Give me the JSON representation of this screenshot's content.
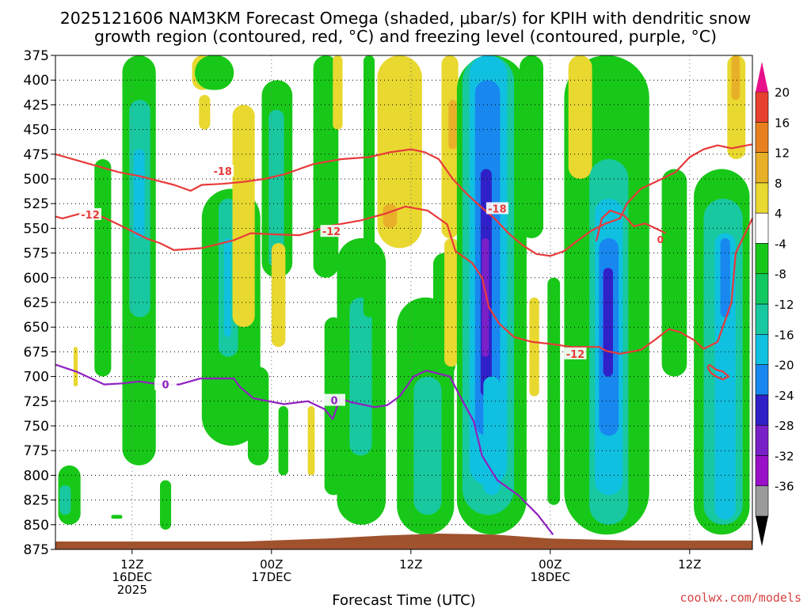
{
  "chart_data": {
    "type": "heatmap",
    "title_line1": "2025121606 NAM3KM Forecast Omega (shaded, μbar/s) for KPIH with dendritic snow",
    "title_line2": "growth region (contoured, red, °C) and freezing level (contoured, purple, °C)",
    "xlabel": "Forecast Time (UTC)",
    "credit": "coolwx.com/models",
    "x_range_hours": [
      6.5,
      56.5
    ],
    "y_range_mb": [
      375,
      875
    ],
    "y_ticks": [
      375,
      400,
      425,
      450,
      475,
      500,
      525,
      550,
      575,
      600,
      625,
      650,
      675,
      700,
      725,
      750,
      775,
      800,
      825,
      850,
      875
    ],
    "x_ticks": [
      {
        "hour": 12,
        "l1": "12Z",
        "l2": "16DEC",
        "l3": "2025"
      },
      {
        "hour": 22,
        "l1": "00Z",
        "l2": "17DEC",
        "l3": ""
      },
      {
        "hour": 32,
        "l1": "12Z",
        "l2": "",
        "l3": ""
      },
      {
        "hour": 42,
        "l1": "00Z",
        "l2": "18DEC",
        "l3": ""
      },
      {
        "hour": 52,
        "l1": "12Z",
        "l2": "",
        "l3": ""
      }
    ],
    "colorbar": {
      "labels": [
        "20",
        "16",
        "12",
        "8",
        "4",
        "-4",
        "-8",
        "-12",
        "-16",
        "-20",
        "-24",
        "-28",
        "-32",
        "-36"
      ],
      "colors": [
        "#e8e8e8",
        "#9b9b9b",
        "#9a10c8",
        "#7a20c8",
        "#3020c8",
        "#1888f0",
        "#10c0e0",
        "#18c8a0",
        "#10c860",
        "#18c818",
        "#ffffff",
        "#e8d830",
        "#e8b028",
        "#e88020",
        "#e84030",
        "#e8108a"
      ]
    },
    "omega_cells": [
      {
        "t": [
          9.3,
          10.5
        ],
        "p": [
          480,
          700
        ],
        "v": -6
      },
      {
        "t": [
          11.3,
          13.7
        ],
        "p": [
          375,
          790
        ],
        "v": -7
      },
      {
        "t": [
          11.8,
          13.3
        ],
        "p": [
          420,
          640
        ],
        "v": -10
      },
      {
        "t": [
          12.1,
          12.9
        ],
        "p": [
          470,
          560
        ],
        "v": -13
      },
      {
        "t": [
          16.3,
          17.8
        ],
        "p": [
          375,
          410
        ],
        "v": 5
      },
      {
        "t": [
          16.8,
          17.6
        ],
        "p": [
          415,
          450
        ],
        "v": 6
      },
      {
        "t": [
          17.0,
          21.2
        ],
        "p": [
          510,
          770
        ],
        "v": -6
      },
      {
        "t": [
          18.2,
          19.6
        ],
        "p": [
          520,
          680
        ],
        "v": -10
      },
      {
        "t": [
          18.6,
          19.1
        ],
        "p": [
          560,
          660
        ],
        "v": -14
      },
      {
        "t": [
          19.2,
          20.8
        ],
        "p": [
          425,
          650
        ],
        "v": 5
      },
      {
        "t": [
          19.4,
          20.2
        ],
        "p": [
          560,
          600
        ],
        "v": 7
      },
      {
        "t": [
          20.3,
          21.8
        ],
        "p": [
          690,
          790
        ],
        "v": -6
      },
      {
        "t": [
          21.3,
          23.5
        ],
        "p": [
          400,
          600
        ],
        "v": -7
      },
      {
        "t": [
          21.8,
          22.9
        ],
        "p": [
          430,
          590
        ],
        "v": -11
      },
      {
        "t": [
          22.0,
          23.0
        ],
        "p": [
          565,
          670
        ],
        "v": 5
      },
      {
        "t": [
          22.5,
          23.2
        ],
        "p": [
          730,
          800
        ],
        "v": -6
      },
      {
        "t": [
          24.6,
          25.1
        ],
        "p": [
          730,
          800
        ],
        "v": 5
      },
      {
        "t": [
          25.0,
          26.8
        ],
        "p": [
          375,
          600
        ],
        "v": -6
      },
      {
        "t": [
          26.4,
          27.1
        ],
        "p": [
          375,
          450
        ],
        "v": 5
      },
      {
        "t": [
          25.8,
          27.1
        ],
        "p": [
          640,
          820
        ],
        "v": -6
      },
      {
        "t": [
          26.7,
          30.2
        ],
        "p": [
          560,
          850
        ],
        "v": -7
      },
      {
        "t": [
          27.6,
          29.2
        ],
        "p": [
          620,
          780
        ],
        "v": -9
      },
      {
        "t": [
          28.6,
          29.4
        ],
        "p": [
          375,
          640
        ],
        "v": -6
      },
      {
        "t": [
          29.6,
          32.8
        ],
        "p": [
          375,
          570
        ],
        "v": 5
      },
      {
        "t": [
          30.0,
          31.0
        ],
        "p": [
          525,
          550
        ],
        "v": 8
      },
      {
        "t": [
          31.0,
          35.1
        ],
        "p": [
          620,
          860
        ],
        "v": -7
      },
      {
        "t": [
          32.2,
          34.2
        ],
        "p": [
          700,
          840
        ],
        "v": -10
      },
      {
        "t": [
          33.6,
          35.2
        ],
        "p": [
          575,
          700
        ],
        "v": -6
      },
      {
        "t": [
          34.2,
          35.4
        ],
        "p": [
          375,
          560
        ],
        "v": 5
      },
      {
        "t": [
          34.7,
          35.3
        ],
        "p": [
          420,
          470
        ],
        "v": 8
      },
      {
        "t": [
          34.4,
          35.4
        ],
        "p": [
          560,
          690
        ],
        "v": 6
      },
      {
        "t": [
          35.3,
          40.3
        ],
        "p": [
          375,
          860
        ],
        "v": -7
      },
      {
        "t": [
          35.7,
          39.4
        ],
        "p": [
          375,
          840
        ],
        "v": -11
      },
      {
        "t": [
          36.2,
          38.9
        ],
        "p": [
          375,
          810
        ],
        "v": -15
      },
      {
        "t": [
          36.6,
          38.4
        ],
        "p": [
          400,
          760
        ],
        "v": -18
      },
      {
        "t": [
          37.0,
          37.8
        ],
        "p": [
          490,
          720
        ],
        "v": -21
      },
      {
        "t": [
          37.1,
          37.6
        ],
        "p": [
          560,
          680
        ],
        "v": -25
      },
      {
        "t": [
          37.2,
          38.4
        ],
        "p": [
          700,
          820
        ],
        "v": -14
      },
      {
        "t": [
          39.8,
          41.5
        ],
        "p": [
          375,
          560
        ],
        "v": -6
      },
      {
        "t": [
          40.5,
          41.2
        ],
        "p": [
          620,
          720
        ],
        "v": 5
      },
      {
        "t": [
          41.8,
          42.7
        ],
        "p": [
          600,
          830
        ],
        "v": -6
      },
      {
        "t": [
          43.0,
          49.1
        ],
        "p": [
          375,
          860
        ],
        "v": -7
      },
      {
        "t": [
          43.3,
          45.0
        ],
        "p": [
          375,
          500
        ],
        "v": 5
      },
      {
        "t": [
          44.8,
          47.6
        ],
        "p": [
          480,
          850
        ],
        "v": -10
      },
      {
        "t": [
          45.2,
          47.2
        ],
        "p": [
          520,
          820
        ],
        "v": -14
      },
      {
        "t": [
          45.5,
          46.9
        ],
        "p": [
          560,
          760
        ],
        "v": -17
      },
      {
        "t": [
          45.8,
          46.5
        ],
        "p": [
          590,
          700
        ],
        "v": -21
      },
      {
        "t": [
          50.0,
          51.8
        ],
        "p": [
          490,
          700
        ],
        "v": -6
      },
      {
        "t": [
          52.3,
          56.3
        ],
        "p": [
          490,
          860
        ],
        "v": -7
      },
      {
        "t": [
          53.0,
          55.8
        ],
        "p": [
          520,
          850
        ],
        "v": -10
      },
      {
        "t": [
          53.8,
          55.3
        ],
        "p": [
          555,
          845
        ],
        "v": -14
      },
      {
        "t": [
          54.2,
          54.9
        ],
        "p": [
          560,
          640
        ],
        "v": -17
      },
      {
        "t": [
          54.7,
          56.0
        ],
        "p": [
          375,
          480
        ],
        "v": 5
      },
      {
        "t": [
          55.0,
          55.6
        ],
        "p": [
          375,
          420
        ],
        "v": 9
      },
      {
        "t": [
          6.7,
          8.3
        ],
        "p": [
          790,
          850
        ],
        "v": -6
      },
      {
        "t": [
          6.8,
          7.6
        ],
        "p": [
          810,
          840
        ],
        "v": -10
      },
      {
        "t": [
          7.8,
          8.1
        ],
        "p": [
          670,
          710
        ],
        "v": 5
      },
      {
        "t": [
          10.5,
          11.3
        ],
        "p": [
          840,
          844
        ],
        "v": -6
      },
      {
        "t": [
          14.0,
          14.8
        ],
        "p": [
          805,
          855
        ],
        "v": -6
      },
      {
        "t": [
          16.5,
          19.3
        ],
        "p": [
          375,
          410
        ],
        "v": -6
      }
    ],
    "terrain_top_mb": [
      {
        "h": 6.5,
        "p": 867
      },
      {
        "h": 20,
        "p": 867
      },
      {
        "h": 26,
        "p": 864
      },
      {
        "h": 30,
        "p": 861
      },
      {
        "h": 34,
        "p": 859
      },
      {
        "h": 38,
        "p": 860
      },
      {
        "h": 42,
        "p": 864
      },
      {
        "h": 48,
        "p": 866
      },
      {
        "h": 56.5,
        "p": 866
      }
    ],
    "contours": [
      {
        "label": "-18",
        "color": "#e83a3a",
        "points": [
          [
            6.5,
            475
          ],
          [
            9,
            485
          ],
          [
            11,
            493
          ],
          [
            12.5,
            497
          ],
          [
            15,
            506
          ],
          [
            16.2,
            512
          ],
          [
            17,
            506
          ],
          [
            18.5,
            505
          ],
          [
            20,
            503
          ],
          [
            21.5,
            500
          ],
          [
            23,
            495
          ],
          [
            24,
            490
          ],
          [
            25,
            485
          ],
          [
            27,
            480
          ],
          [
            29,
            478
          ],
          [
            30.5,
            473
          ],
          [
            32,
            470
          ],
          [
            33,
            473
          ],
          [
            34,
            480
          ],
          [
            35,
            500
          ],
          [
            36,
            515
          ],
          [
            37,
            528
          ],
          [
            38,
            540
          ],
          [
            39,
            555
          ],
          [
            40,
            567
          ],
          [
            41,
            576
          ],
          [
            42,
            578
          ],
          [
            43,
            573
          ],
          [
            44,
            562
          ],
          [
            45,
            552
          ],
          [
            46,
            545
          ],
          [
            47,
            540
          ],
          [
            47.5,
            525
          ],
          [
            48.5,
            510
          ],
          [
            50,
            500
          ],
          [
            51,
            493
          ],
          [
            52,
            478
          ],
          [
            53,
            470
          ],
          [
            54,
            466
          ],
          [
            55,
            469
          ],
          [
            56.5,
            465
          ]
        ],
        "label_at": [
          18.5,
          492,
          38.2,
          530
        ]
      },
      {
        "label": "-12",
        "color": "#e83a3a",
        "points": [
          [
            6.5,
            538
          ],
          [
            7,
            540
          ],
          [
            8.3,
            535
          ],
          [
            9.5,
            536
          ],
          [
            11,
            546
          ],
          [
            13,
            560
          ],
          [
            14,
            565
          ],
          [
            15,
            572
          ],
          [
            17,
            570
          ],
          [
            19.3,
            562
          ],
          [
            20.5,
            555
          ],
          [
            22,
            556
          ],
          [
            24,
            557
          ],
          [
            25,
            553
          ],
          [
            26,
            548
          ],
          [
            28.4,
            542
          ],
          [
            30.2,
            535
          ],
          [
            31.6,
            528
          ],
          [
            33.2,
            532
          ],
          [
            34.6,
            546
          ],
          [
            35.2,
            573
          ],
          [
            36.4,
            585
          ],
          [
            37.1,
            600
          ],
          [
            37.6,
            630
          ],
          [
            38.3,
            646
          ],
          [
            39.4,
            660
          ],
          [
            40.7,
            665
          ],
          [
            42,
            667
          ],
          [
            43.5,
            670
          ],
          [
            44.5,
            670
          ],
          [
            45.5,
            670
          ],
          [
            46,
            674
          ],
          [
            47,
            677
          ],
          [
            48.5,
            673
          ],
          [
            49.5,
            663
          ],
          [
            50.5,
            652
          ],
          [
            51.3,
            655
          ],
          [
            52.3,
            663
          ],
          [
            53,
            672
          ],
          [
            54,
            665
          ],
          [
            55,
            625
          ],
          [
            55.3,
            575
          ],
          [
            56.5,
            540
          ]
        ],
        "label_at": [
          9,
          536,
          26.3,
          553,
          43.8,
          677
        ]
      },
      {
        "label": "-12",
        "color": "#e83a3a",
        "points": [
          [
            45.3,
            563
          ],
          [
            45.7,
            540
          ],
          [
            46.3,
            532
          ],
          [
            47.3,
            537
          ],
          [
            48,
            548
          ],
          [
            48.8,
            545
          ],
          [
            50.3,
            555
          ]
        ],
        "label_at": []
      },
      {
        "label": "",
        "color": "#e83a3a",
        "points": [
          [
            53.4,
            688
          ],
          [
            53.9,
            693
          ],
          [
            54.4,
            695
          ],
          [
            54.8,
            700
          ],
          [
            54.4,
            703
          ],
          [
            53.9,
            700
          ],
          [
            53.5,
            696
          ],
          [
            53.3,
            691
          ],
          [
            53.4,
            688
          ]
        ],
        "label_at": []
      },
      {
        "label": "0",
        "color": "#9020c0",
        "points": [
          [
            6.5,
            688
          ],
          [
            8,
            695
          ],
          [
            10,
            708
          ],
          [
            11.3,
            707
          ],
          [
            12.5,
            705
          ],
          [
            14,
            708
          ],
          [
            15.4,
            708
          ],
          [
            16.9,
            702
          ],
          [
            18,
            702
          ],
          [
            19.3,
            702
          ],
          [
            19.7,
            710
          ],
          [
            20.7,
            722
          ],
          [
            22.9,
            728
          ],
          [
            24.6,
            725
          ],
          [
            25.8,
            733
          ],
          [
            26.4,
            743
          ],
          [
            26.9,
            722
          ],
          [
            27.7,
            726
          ],
          [
            28.4,
            728
          ],
          [
            29.4,
            731
          ],
          [
            30.3,
            729
          ],
          [
            31.2,
            720
          ],
          [
            32.2,
            700
          ],
          [
            33.1,
            694
          ],
          [
            34.8,
            700
          ],
          [
            35.6,
            722
          ],
          [
            36.5,
            745
          ],
          [
            37.1,
            780
          ],
          [
            38.2,
            805
          ],
          [
            39.7,
            820
          ],
          [
            41.1,
            840
          ],
          [
            42.2,
            860
          ]
        ],
        "label_at": [
          14.4,
          708,
          26.5,
          724
        ]
      }
    ],
    "o_marker": {
      "label": "0",
      "hour": 49.9,
      "mb": 561
    }
  }
}
